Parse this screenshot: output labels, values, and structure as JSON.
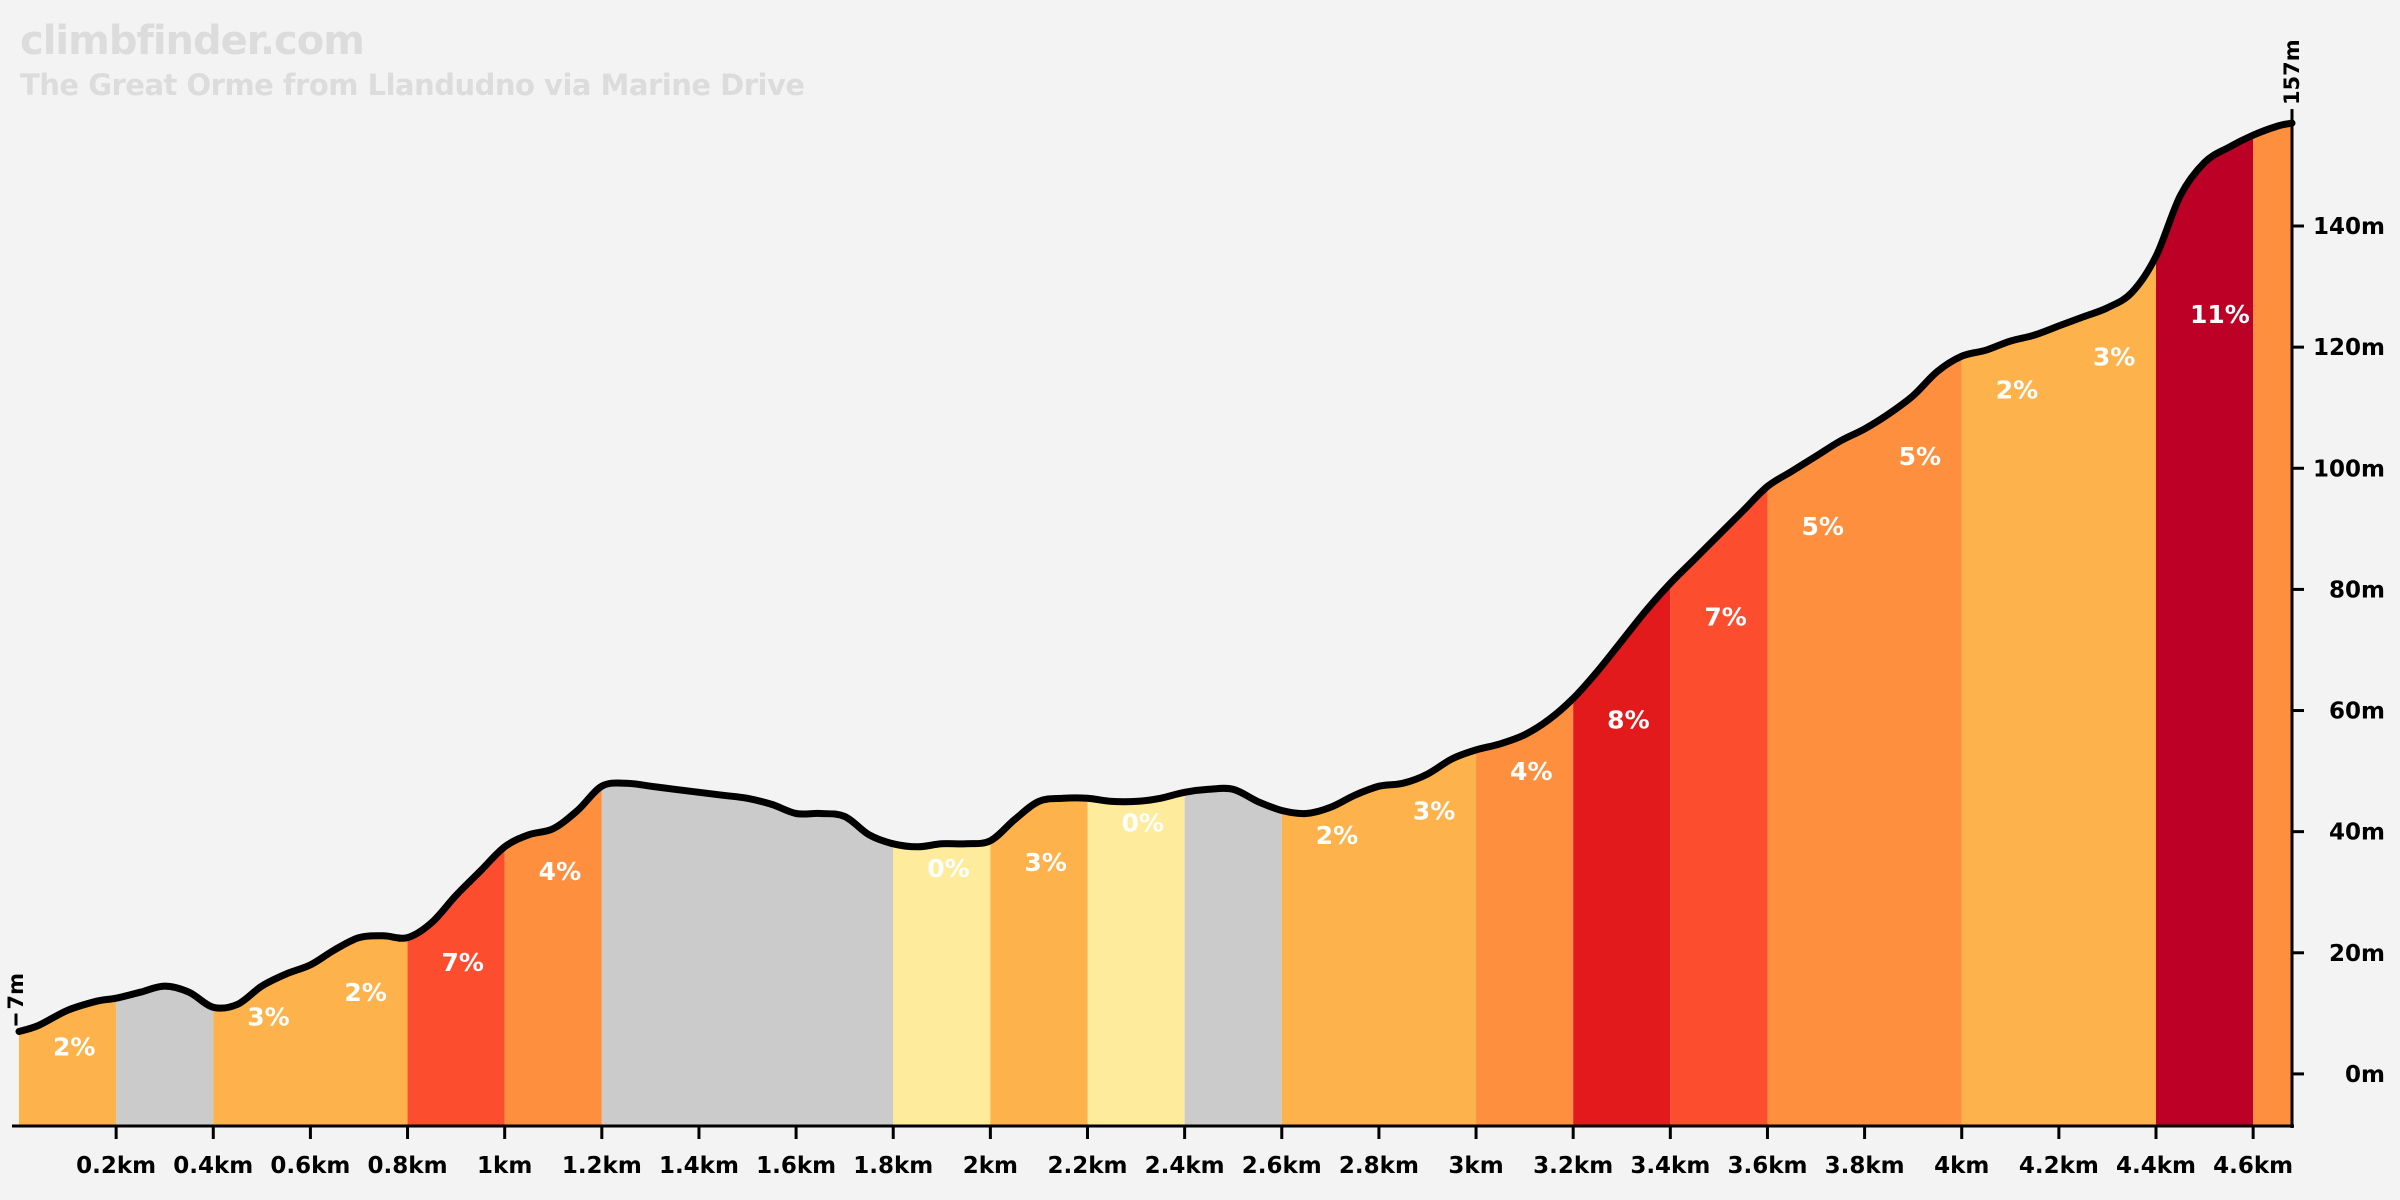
{
  "brand": "climbfinder.com",
  "chart_data": {
    "type": "area",
    "title": "The Great Orme from Llandudno via Marine Drive",
    "xlabel": "",
    "ylabel": "",
    "x_unit": "km",
    "y_unit": "m",
    "xlim": [
      0,
      4.68
    ],
    "ylim": [
      -8.6,
      158
    ],
    "grid": false,
    "start_label": "7m",
    "end_label": "157m",
    "x_ticks": [
      {
        "value": 0.2,
        "label": "0.2km"
      },
      {
        "value": 0.4,
        "label": "0.4km"
      },
      {
        "value": 0.6,
        "label": "0.6km"
      },
      {
        "value": 0.8,
        "label": "0.8km"
      },
      {
        "value": 1.0,
        "label": "1km"
      },
      {
        "value": 1.2,
        "label": "1.2km"
      },
      {
        "value": 1.4,
        "label": "1.4km"
      },
      {
        "value": 1.6,
        "label": "1.6km"
      },
      {
        "value": 1.8,
        "label": "1.8km"
      },
      {
        "value": 2.0,
        "label": "2km"
      },
      {
        "value": 2.2,
        "label": "2.2km"
      },
      {
        "value": 2.4,
        "label": "2.4km"
      },
      {
        "value": 2.6,
        "label": "2.6km"
      },
      {
        "value": 2.8,
        "label": "2.8km"
      },
      {
        "value": 3.0,
        "label": "3km"
      },
      {
        "value": 3.2,
        "label": "3.2km"
      },
      {
        "value": 3.4,
        "label": "3.4km"
      },
      {
        "value": 3.6,
        "label": "3.6km"
      },
      {
        "value": 3.8,
        "label": "3.8km"
      },
      {
        "value": 4.0,
        "label": "4km"
      },
      {
        "value": 4.2,
        "label": "4.2km"
      },
      {
        "value": 4.4,
        "label": "4.4km"
      },
      {
        "value": 4.6,
        "label": "4.6km"
      }
    ],
    "y_ticks": [
      {
        "value": 0,
        "label": "0m"
      },
      {
        "value": 20,
        "label": "20m"
      },
      {
        "value": 40,
        "label": "40m"
      },
      {
        "value": 60,
        "label": "60m"
      },
      {
        "value": 80,
        "label": "80m"
      },
      {
        "value": 100,
        "label": "100m"
      },
      {
        "value": 120,
        "label": "120m"
      },
      {
        "value": 140,
        "label": "140m"
      }
    ],
    "profile": [
      [
        0,
        7
      ],
      [
        0.04,
        8
      ],
      [
        0.1,
        10.5
      ],
      [
        0.16,
        12
      ],
      [
        0.2,
        12.5
      ],
      [
        0.25,
        13.5
      ],
      [
        0.3,
        14.5
      ],
      [
        0.35,
        13.5
      ],
      [
        0.4,
        11
      ],
      [
        0.45,
        11.5
      ],
      [
        0.5,
        14.5
      ],
      [
        0.55,
        16.5
      ],
      [
        0.6,
        18
      ],
      [
        0.65,
        20.5
      ],
      [
        0.7,
        22.5
      ],
      [
        0.75,
        22.8
      ],
      [
        0.8,
        22.5
      ],
      [
        0.85,
        25
      ],
      [
        0.9,
        29.5
      ],
      [
        0.95,
        33.5
      ],
      [
        1.0,
        37.5
      ],
      [
        1.05,
        39.5
      ],
      [
        1.1,
        40.5
      ],
      [
        1.15,
        43.5
      ],
      [
        1.2,
        47.5
      ],
      [
        1.25,
        48
      ],
      [
        1.3,
        47.5
      ],
      [
        1.35,
        47
      ],
      [
        1.4,
        46.5
      ],
      [
        1.45,
        46
      ],
      [
        1.5,
        45.5
      ],
      [
        1.55,
        44.5
      ],
      [
        1.6,
        43
      ],
      [
        1.65,
        43
      ],
      [
        1.7,
        42.5
      ],
      [
        1.75,
        39.5
      ],
      [
        1.8,
        38
      ],
      [
        1.85,
        37.5
      ],
      [
        1.9,
        38
      ],
      [
        1.95,
        38
      ],
      [
        2.0,
        38.5
      ],
      [
        2.05,
        42
      ],
      [
        2.1,
        45
      ],
      [
        2.15,
        45.5
      ],
      [
        2.2,
        45.5
      ],
      [
        2.25,
        45
      ],
      [
        2.3,
        45
      ],
      [
        2.35,
        45.5
      ],
      [
        2.4,
        46.5
      ],
      [
        2.45,
        47
      ],
      [
        2.5,
        47
      ],
      [
        2.55,
        45
      ],
      [
        2.6,
        43.5
      ],
      [
        2.65,
        43
      ],
      [
        2.7,
        44
      ],
      [
        2.75,
        46
      ],
      [
        2.8,
        47.5
      ],
      [
        2.85,
        48
      ],
      [
        2.9,
        49.5
      ],
      [
        2.95,
        52
      ],
      [
        3.0,
        53.5
      ],
      [
        3.05,
        54.5
      ],
      [
        3.1,
        56
      ],
      [
        3.15,
        58.5
      ],
      [
        3.2,
        62
      ],
      [
        3.25,
        66.5
      ],
      [
        3.3,
        71.5
      ],
      [
        3.35,
        76.5
      ],
      [
        3.4,
        81
      ],
      [
        3.45,
        85
      ],
      [
        3.5,
        89
      ],
      [
        3.55,
        93
      ],
      [
        3.6,
        97
      ],
      [
        3.65,
        99.5
      ],
      [
        3.7,
        102
      ],
      [
        3.75,
        104.5
      ],
      [
        3.8,
        106.5
      ],
      [
        3.85,
        109
      ],
      [
        3.9,
        112
      ],
      [
        3.95,
        116
      ],
      [
        4.0,
        118.5
      ],
      [
        4.05,
        119.5
      ],
      [
        4.1,
        121
      ],
      [
        4.15,
        122
      ],
      [
        4.2,
        123.5
      ],
      [
        4.25,
        125
      ],
      [
        4.3,
        126.5
      ],
      [
        4.35,
        129
      ],
      [
        4.4,
        135
      ],
      [
        4.45,
        145
      ],
      [
        4.5,
        150.5
      ],
      [
        4.55,
        153
      ],
      [
        4.6,
        155
      ],
      [
        4.65,
        156.5
      ],
      [
        4.68,
        157
      ]
    ],
    "segments": [
      {
        "from": 0.0,
        "to": 0.2,
        "grade": "2%",
        "color": "#fdb24b"
      },
      {
        "from": 0.2,
        "to": 0.4,
        "grade": "",
        "color": "#cbcbcb"
      },
      {
        "from": 0.4,
        "to": 0.8,
        "grade": "3%",
        "color": "#fdb24b"
      },
      {
        "from": 0.8,
        "to": 1.0,
        "grade": "7%",
        "color": "#fd4d2f"
      },
      {
        "from": 1.0,
        "to": 1.2,
        "grade": "4%",
        "color": "#fe8f3f"
      },
      {
        "from": 1.2,
        "to": 1.8,
        "grade": "",
        "color": "#cbcbcb"
      },
      {
        "from": 1.8,
        "to": 2.0,
        "grade": "0%",
        "color": "#ffeb9c"
      },
      {
        "from": 2.0,
        "to": 2.2,
        "grade": "3%",
        "color": "#fdb24b"
      },
      {
        "from": 2.2,
        "to": 2.4,
        "grade": "0%",
        "color": "#ffeb9c"
      },
      {
        "from": 2.4,
        "to": 2.6,
        "grade": "",
        "color": "#cbcbcb"
      },
      {
        "from": 2.6,
        "to": 3.0,
        "grade": "2%",
        "color": "#fdb24b"
      },
      {
        "from": 3.0,
        "to": 3.2,
        "grade": "4%",
        "color": "#fe8f3f"
      },
      {
        "from": 3.2,
        "to": 3.4,
        "grade": "8%",
        "color": "#e31a1c"
      },
      {
        "from": 3.4,
        "to": 3.6,
        "grade": "7%",
        "color": "#fd4d2f"
      },
      {
        "from": 3.6,
        "to": 4.0,
        "grade": "5%",
        "color": "#fe8f3f"
      },
      {
        "from": 4.0,
        "to": 4.4,
        "grade": "2%",
        "color": "#fdb24b"
      },
      {
        "from": 4.4,
        "to": 4.6,
        "grade": "11%",
        "color": "#bd0026"
      },
      {
        "from": 4.6,
        "to": 4.68,
        "grade": "",
        "color": "#fe8f3f"
      }
    ],
    "grade_labels": [
      {
        "x": 0.07,
        "y": 3,
        "text": "2%"
      },
      {
        "x": 0.47,
        "y": 8,
        "text": "3%"
      },
      {
        "x": 0.67,
        "y": 12,
        "text": "2%"
      },
      {
        "x": 0.87,
        "y": 17,
        "text": "7%"
      },
      {
        "x": 1.07,
        "y": 32,
        "text": "4%"
      },
      {
        "x": 1.87,
        "y": 32.5,
        "text": "0%"
      },
      {
        "x": 2.07,
        "y": 33.5,
        "text": "3%"
      },
      {
        "x": 2.27,
        "y": 40,
        "text": "0%"
      },
      {
        "x": 2.67,
        "y": 38,
        "text": "2%"
      },
      {
        "x": 2.87,
        "y": 42,
        "text": "3%"
      },
      {
        "x": 3.07,
        "y": 48.5,
        "text": "4%"
      },
      {
        "x": 3.27,
        "y": 57,
        "text": "8%"
      },
      {
        "x": 3.47,
        "y": 74,
        "text": "7%"
      },
      {
        "x": 3.67,
        "y": 89,
        "text": "5%"
      },
      {
        "x": 3.87,
        "y": 100.5,
        "text": "5%"
      },
      {
        "x": 4.07,
        "y": 111.5,
        "text": "2%"
      },
      {
        "x": 4.27,
        "y": 117,
        "text": "3%"
      },
      {
        "x": 4.47,
        "y": 124,
        "text": "11%"
      }
    ]
  }
}
